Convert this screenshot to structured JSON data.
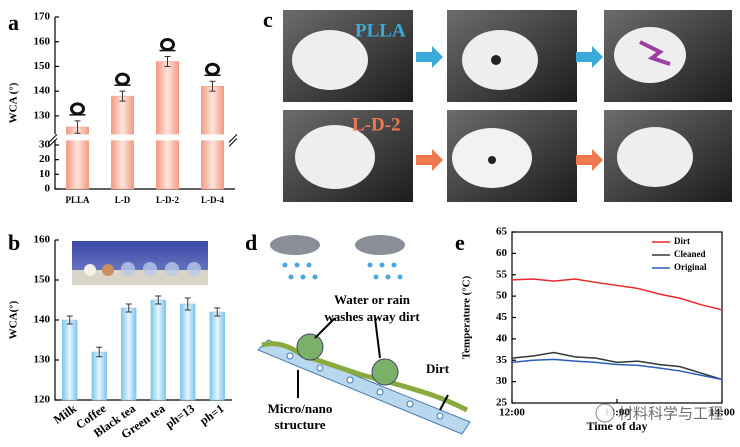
{
  "chart_data": [
    {
      "type": "bar",
      "label": "a",
      "y_label": "WCA (°)",
      "categories": [
        "PLLA",
        "L-D",
        "L-D-2",
        "L-D-4"
      ],
      "values": [
        125.5,
        138,
        152,
        142
      ],
      "errors": [
        2.5,
        2,
        2,
        2
      ],
      "color": "#f39a84",
      "ylim": [
        0,
        170
      ],
      "ybreak": [
        34,
        122
      ],
      "yticks": [
        0,
        10,
        20,
        30,
        130,
        140,
        150,
        160,
        170
      ]
    },
    {
      "type": "bar",
      "label": "b",
      "y_label": "WCA(°)",
      "categories": [
        "Milk",
        "Coffee",
        "Black tea",
        "Green tea",
        "ph=13",
        "ph=1"
      ],
      "values": [
        140,
        132,
        143,
        145,
        144,
        142
      ],
      "errors": [
        1,
        1.2,
        1,
        1,
        1.5,
        1
      ],
      "color": "#7cc6ea",
      "ylim": [
        120,
        160
      ],
      "yticks": [
        120,
        130,
        140,
        150,
        160
      ]
    },
    {
      "type": "line",
      "label": "e",
      "x_label": "Time of day",
      "y_label": "Temperature (°C)",
      "x": [
        12.0,
        12.2,
        12.4,
        12.6,
        12.8,
        13.0,
        13.2,
        13.4,
        13.6,
        13.8,
        14.0
      ],
      "series": [
        {
          "name": "Dirt",
          "color": "#e8282a",
          "values": [
            53.8,
            54,
            53.5,
            54,
            53.2,
            52.5,
            51.8,
            50.5,
            49.5,
            48,
            46.8
          ]
        },
        {
          "name": "Cleaned",
          "color": "#2f3b36",
          "values": [
            35.5,
            36,
            36.8,
            35.8,
            35.5,
            34.5,
            34.8,
            34,
            33.5,
            32,
            30.5
          ]
        },
        {
          "name": "Original",
          "color": "#2a5db8",
          "values": [
            34.5,
            35,
            35.2,
            34.8,
            34.5,
            34,
            33.8,
            33.2,
            32.5,
            31.5,
            30.5
          ]
        }
      ],
      "xlim": [
        12,
        14
      ],
      "xticks": [
        {
          "value": 12,
          "label": "12:00"
        },
        {
          "value": 13,
          "label": "13:00"
        },
        {
          "value": 14,
          "label": "14:00"
        }
      ],
      "ylim": [
        25,
        65
      ],
      "yticks": [
        25,
        30,
        35,
        40,
        45,
        50,
        55,
        60,
        65
      ],
      "legend": "top-right"
    }
  ],
  "photo_panel": {
    "label": "c",
    "samples": [
      "PLLA",
      "L-D-2"
    ]
  },
  "diagram": {
    "label": "d",
    "rain_text": [
      "Water or rain",
      "washes away dirt"
    ],
    "dirt_text": "Dirt",
    "structure_text": [
      "Micro/nano",
      "structure"
    ]
  },
  "watermark": "材料科学与工程"
}
